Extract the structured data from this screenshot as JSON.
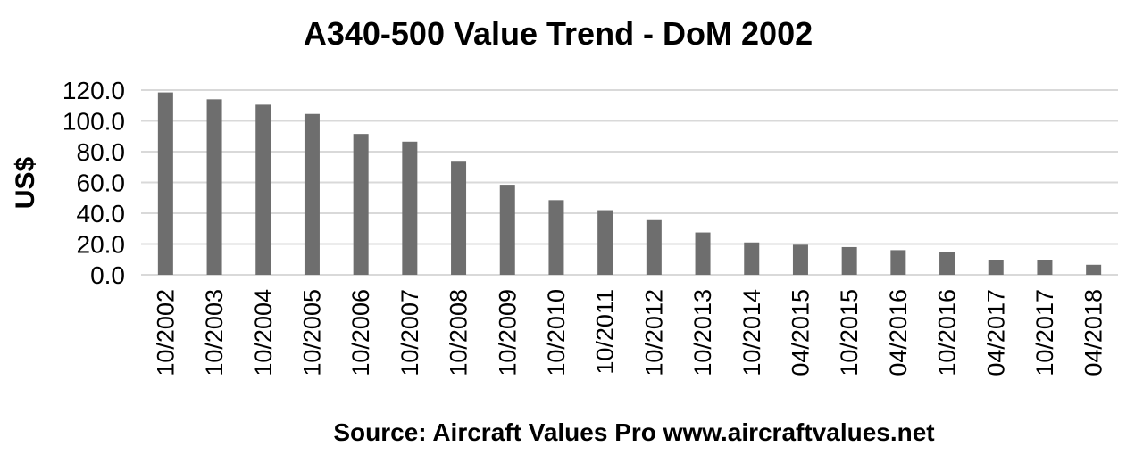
{
  "chart_data": {
    "type": "bar",
    "title": "A340-500 Value Trend - DoM 2002",
    "ylabel": "US$",
    "xlabel": "Source: Aircraft Values Pro www.aircraftvalues.net",
    "categories": [
      "10/2002",
      "10/2003",
      "10/2004",
      "10/2005",
      "10/2006",
      "10/2007",
      "10/2008",
      "10/2009",
      "10/2010",
      "10/2011",
      "10/2012",
      "10/2013",
      "10/2014",
      "04/2015",
      "10/2015",
      "04/2016",
      "10/2016",
      "04/2017",
      "10/2017",
      "04/2018"
    ],
    "values": [
      118.5,
      114.0,
      110.5,
      104.5,
      91.5,
      86.5,
      73.5,
      58.5,
      48.5,
      42.0,
      35.5,
      27.5,
      21.0,
      19.5,
      18.0,
      16.0,
      14.5,
      9.5,
      9.5,
      6.5
    ],
    "ylim": [
      0,
      120
    ],
    "yticks": [
      "0.0",
      "20.0",
      "40.0",
      "60.0",
      "80.0",
      "100.0",
      "120.0"
    ],
    "grid": true,
    "bar_color": "#6e6e6e",
    "grid_color": "#d9d9d9"
  }
}
